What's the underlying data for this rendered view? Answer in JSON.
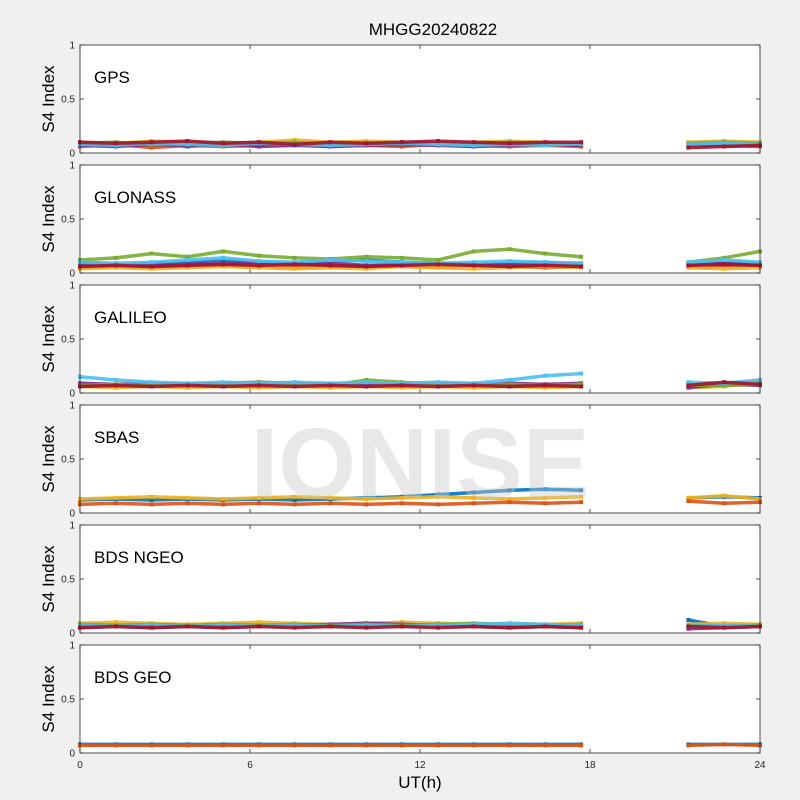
{
  "figure": {
    "title": "MHGG20240822",
    "watermark": "IONISE",
    "xlabel": "UT(h)",
    "background": "#f0f0f0",
    "panel_background": "#ffffff"
  },
  "chart_data": [
    {
      "type": "scatter",
      "label": "GPS",
      "ylabel": "S4 Index",
      "xlim": [
        0,
        24
      ],
      "ylim": [
        0,
        1
      ],
      "yticks": [
        "0",
        "0.5",
        "1"
      ],
      "xticks": [],
      "grid": false,
      "data_gap_hours": [
        18.2,
        20.9
      ],
      "series": [
        {
          "color": "#0072bd",
          "values": [
            0.08,
            0.07,
            0.09,
            0.06,
            0.08,
            0.1,
            0.07,
            0.09,
            0.08,
            0.07,
            0.08,
            0.09,
            0.07,
            0.08,
            0.09,
            0.08,
            0.07,
            0.08,
            0.08,
            0.09
          ]
        },
        {
          "color": "#d95319",
          "values": [
            0.06,
            0.08,
            0.05,
            0.07,
            0.06,
            0.07,
            0.08,
            0.06,
            0.07,
            0.06,
            0.08,
            0.07,
            0.06,
            0.07,
            0.06,
            0.07,
            0.06,
            0.07,
            0.07,
            0.06
          ]
        },
        {
          "color": "#edb120",
          "values": [
            0.1,
            0.09,
            0.11,
            0.1,
            0.09,
            0.1,
            0.12,
            0.1,
            0.11,
            0.1,
            0.09,
            0.1,
            0.11,
            0.1,
            0.09,
            0.1,
            0.09,
            0.1,
            0.11,
            0.1
          ]
        },
        {
          "color": "#7e2f8e",
          "values": [
            0.07,
            0.06,
            0.08,
            0.07,
            0.08,
            0.06,
            0.07,
            0.06,
            0.07,
            0.08,
            0.07,
            0.06,
            0.07,
            0.08,
            0.07,
            0.06,
            0.07,
            0.07,
            0.08,
            0.07
          ]
        },
        {
          "color": "#77ac30",
          "values": [
            0.09,
            0.1,
            0.08,
            0.09,
            0.1,
            0.09,
            0.1,
            0.08,
            0.09,
            0.1,
            0.09,
            0.08,
            0.1,
            0.09,
            0.08,
            0.09,
            0.1,
            0.09,
            0.1,
            0.09
          ]
        },
        {
          "color": "#4dbeee",
          "values": [
            0.08,
            0.07,
            0.09,
            0.08,
            0.07,
            0.09,
            0.08,
            0.07,
            0.08,
            0.09,
            0.08,
            0.07,
            0.08,
            0.07,
            0.09,
            0.08,
            0.07,
            0.08,
            0.09,
            0.08
          ]
        },
        {
          "color": "#a2142f",
          "values": [
            0.1,
            0.09,
            0.1,
            0.11,
            0.09,
            0.1,
            0.08,
            0.1,
            0.09,
            0.1,
            0.11,
            0.1,
            0.09,
            0.1,
            0.1,
            0.09,
            0.1,
            0.05,
            0.06,
            0.07
          ]
        }
      ]
    },
    {
      "type": "scatter",
      "label": "GLONASS",
      "ylabel": "S4 Index",
      "xlim": [
        0,
        24
      ],
      "ylim": [
        0,
        1
      ],
      "yticks": [
        "0",
        "0.5",
        "1"
      ],
      "xticks": [],
      "grid": false,
      "data_gap_hours": [
        18.2,
        20.9
      ],
      "series": [
        {
          "color": "#0072bd",
          "values": [
            0.08,
            0.07,
            0.09,
            0.1,
            0.12,
            0.1,
            0.09,
            0.11,
            0.12,
            0.1,
            0.09,
            0.08,
            0.09,
            0.1,
            0.08,
            0.09,
            0.07,
            0.08,
            0.1,
            0.09
          ]
        },
        {
          "color": "#d95319",
          "values": [
            0.05,
            0.06,
            0.05,
            0.06,
            0.07,
            0.06,
            0.05,
            0.06,
            0.07,
            0.06,
            0.05,
            0.07,
            0.06,
            0.05,
            0.06,
            0.07,
            0.06,
            0.05,
            0.06,
            0.07
          ]
        },
        {
          "color": "#edb120",
          "values": [
            0.04,
            0.05,
            0.04,
            0.05,
            0.06,
            0.05,
            0.04,
            0.05,
            0.04,
            0.06,
            0.05,
            0.04,
            0.05,
            0.06,
            0.05,
            0.04,
            0.05,
            0.05,
            0.04,
            0.05
          ]
        },
        {
          "color": "#7e2f8e",
          "values": [
            0.09,
            0.08,
            0.07,
            0.08,
            0.09,
            0.1,
            0.08,
            0.09,
            0.07,
            0.08,
            0.09,
            0.08,
            0.07,
            0.08,
            0.09,
            0.08,
            0.07,
            0.08,
            0.09,
            0.08
          ]
        },
        {
          "color": "#77ac30",
          "values": [
            0.12,
            0.14,
            0.18,
            0.15,
            0.2,
            0.16,
            0.14,
            0.13,
            0.15,
            0.14,
            0.12,
            0.2,
            0.22,
            0.18,
            0.15,
            0.13,
            0.12,
            0.1,
            0.14,
            0.2
          ]
        },
        {
          "color": "#4dbeee",
          "values": [
            0.1,
            0.09,
            0.1,
            0.12,
            0.14,
            0.11,
            0.1,
            0.12,
            0.11,
            0.1,
            0.09,
            0.1,
            0.11,
            0.1,
            0.09,
            0.1,
            0.09,
            0.1,
            0.12,
            0.1
          ]
        },
        {
          "color": "#a2142f",
          "values": [
            0.06,
            0.07,
            0.06,
            0.07,
            0.08,
            0.07,
            0.08,
            0.07,
            0.06,
            0.07,
            0.08,
            0.07,
            0.06,
            0.07,
            0.06,
            0.07,
            0.06,
            0.07,
            0.08,
            0.07
          ]
        }
      ]
    },
    {
      "type": "scatter",
      "label": "GALILEO",
      "ylabel": "S4 Index",
      "xlim": [
        0,
        24
      ],
      "ylim": [
        0,
        1
      ],
      "yticks": [
        "0",
        "0.5",
        "1"
      ],
      "xticks": [],
      "grid": false,
      "data_gap_hours": [
        18.2,
        20.9
      ],
      "series": [
        {
          "color": "#0072bd",
          "values": [
            0.07,
            0.06,
            0.07,
            0.08,
            0.07,
            0.06,
            0.07,
            0.08,
            0.07,
            0.06,
            0.07,
            0.08,
            0.07,
            0.06,
            0.07,
            0.08,
            0.07,
            0.06,
            0.08,
            0.1
          ]
        },
        {
          "color": "#d95319",
          "values": [
            0.08,
            0.07,
            0.08,
            0.07,
            0.09,
            0.08,
            0.07,
            0.08,
            0.07,
            0.08,
            0.07,
            0.08,
            0.07,
            0.08,
            0.07,
            0.08,
            0.07,
            0.08,
            0.07,
            0.08
          ]
        },
        {
          "color": "#edb120",
          "values": [
            0.06,
            0.05,
            0.06,
            0.05,
            0.06,
            0.05,
            0.06,
            0.05,
            0.06,
            0.05,
            0.06,
            0.05,
            0.06,
            0.05,
            0.06,
            0.05,
            0.06,
            0.05,
            0.06,
            0.12
          ]
        },
        {
          "color": "#7e2f8e",
          "values": [
            0.09,
            0.08,
            0.09,
            0.08,
            0.09,
            0.1,
            0.09,
            0.08,
            0.09,
            0.08,
            0.09,
            0.08,
            0.09,
            0.08,
            0.09,
            0.08,
            0.09,
            0.05,
            0.08,
            0.07
          ]
        },
        {
          "color": "#77ac30",
          "values": [
            0.07,
            0.08,
            0.07,
            0.08,
            0.07,
            0.1,
            0.08,
            0.07,
            0.12,
            0.1,
            0.08,
            0.07,
            0.08,
            0.07,
            0.08,
            0.07,
            0.08,
            0.07,
            0.07,
            0.08
          ]
        },
        {
          "color": "#4dbeee",
          "values": [
            0.15,
            0.12,
            0.1,
            0.09,
            0.1,
            0.09,
            0.1,
            0.09,
            0.1,
            0.09,
            0.1,
            0.09,
            0.12,
            0.16,
            0.18,
            0.15,
            0.12,
            0.1,
            0.09,
            0.12
          ]
        },
        {
          "color": "#a2142f",
          "values": [
            0.06,
            0.07,
            0.06,
            0.07,
            0.06,
            0.07,
            0.06,
            0.07,
            0.06,
            0.07,
            0.06,
            0.07,
            0.06,
            0.07,
            0.06,
            0.07,
            0.06,
            0.07,
            0.1,
            0.08
          ]
        }
      ]
    },
    {
      "type": "scatter",
      "label": "SBAS",
      "ylabel": "S4 Index",
      "xlim": [
        0,
        24
      ],
      "ylim": [
        0,
        1
      ],
      "yticks": [
        "0",
        "0.5",
        "1"
      ],
      "xticks": [],
      "grid": false,
      "data_gap_hours": [
        18.2,
        20.9
      ],
      "series": [
        {
          "color": "#0072bd",
          "values": [
            0.12,
            0.13,
            0.12,
            0.13,
            0.12,
            0.13,
            0.12,
            0.13,
            0.14,
            0.15,
            0.17,
            0.19,
            0.21,
            0.22,
            0.21,
            0.19,
            0.17,
            0.14,
            0.15,
            0.14
          ]
        },
        {
          "color": "#edb120",
          "values": [
            0.13,
            0.14,
            0.15,
            0.14,
            0.13,
            0.14,
            0.15,
            0.14,
            0.13,
            0.14,
            0.15,
            0.14,
            0.13,
            0.14,
            0.15,
            0.14,
            0.13,
            0.14,
            0.16,
            0.13
          ]
        },
        {
          "color": "#d95319",
          "values": [
            0.08,
            0.09,
            0.08,
            0.09,
            0.08,
            0.09,
            0.08,
            0.09,
            0.08,
            0.09,
            0.08,
            0.09,
            0.1,
            0.09,
            0.1,
            0.09,
            0.1,
            0.11,
            0.09,
            0.1
          ]
        }
      ]
    },
    {
      "type": "scatter",
      "label": "BDS NGEO",
      "ylabel": "S4 Index",
      "xlim": [
        0,
        24
      ],
      "ylim": [
        0,
        1
      ],
      "yticks": [
        "0",
        "0.5",
        "1"
      ],
      "xticks": [],
      "grid": false,
      "data_gap_hours": [
        18.2,
        20.9
      ],
      "series": [
        {
          "color": "#0072bd",
          "values": [
            0.06,
            0.07,
            0.06,
            0.07,
            0.06,
            0.07,
            0.06,
            0.07,
            0.06,
            0.07,
            0.08,
            0.07,
            0.06,
            0.07,
            0.06,
            0.07,
            0.06,
            0.12,
            0.06,
            0.07
          ]
        },
        {
          "color": "#d95319",
          "values": [
            0.07,
            0.08,
            0.07,
            0.06,
            0.07,
            0.08,
            0.07,
            0.06,
            0.07,
            0.08,
            0.07,
            0.06,
            0.07,
            0.08,
            0.07,
            0.06,
            0.07,
            0.06,
            0.07,
            0.08
          ]
        },
        {
          "color": "#edb120",
          "values": [
            0.09,
            0.1,
            0.09,
            0.08,
            0.09,
            0.1,
            0.09,
            0.08,
            0.09,
            0.1,
            0.09,
            0.08,
            0.09,
            0.08,
            0.09,
            0.08,
            0.09,
            0.08,
            0.09,
            0.08
          ]
        },
        {
          "color": "#7e2f8e",
          "values": [
            0.05,
            0.06,
            0.05,
            0.06,
            0.05,
            0.06,
            0.07,
            0.08,
            0.09,
            0.08,
            0.07,
            0.06,
            0.05,
            0.06,
            0.05,
            0.06,
            0.05,
            0.04,
            0.05,
            0.06
          ]
        },
        {
          "color": "#77ac30",
          "values": [
            0.08,
            0.07,
            0.08,
            0.07,
            0.08,
            0.07,
            0.08,
            0.07,
            0.08,
            0.07,
            0.08,
            0.09,
            0.08,
            0.07,
            0.08,
            0.07,
            0.08,
            0.07,
            0.06,
            0.07
          ]
        },
        {
          "color": "#4dbeee",
          "values": [
            0.07,
            0.06,
            0.07,
            0.06,
            0.07,
            0.06,
            0.07,
            0.06,
            0.07,
            0.06,
            0.07,
            0.08,
            0.09,
            0.08,
            0.07,
            0.06,
            0.07,
            0.06,
            0.07,
            0.06
          ]
        },
        {
          "color": "#a2142f",
          "values": [
            0.05,
            0.06,
            0.05,
            0.06,
            0.05,
            0.06,
            0.05,
            0.06,
            0.05,
            0.06,
            0.05,
            0.06,
            0.05,
            0.06,
            0.05,
            0.06,
            0.05,
            0.06,
            0.05,
            0.06
          ]
        }
      ]
    },
    {
      "type": "scatter",
      "label": "BDS GEO",
      "ylabel": "S4 Index",
      "xlim": [
        0,
        24
      ],
      "ylim": [
        0,
        1
      ],
      "yticks": [
        "0",
        "0.5",
        "1"
      ],
      "xticks": [
        "0",
        "6",
        "12",
        "18",
        "24"
      ],
      "grid": false,
      "data_gap_hours": [
        18.2,
        20.9
      ],
      "series": [
        {
          "color": "#0072bd",
          "values": [
            0.08,
            0.08,
            0.08,
            0.08,
            0.08,
            0.08,
            0.08,
            0.08,
            0.08,
            0.08,
            0.08,
            0.08,
            0.08,
            0.08,
            0.08,
            0.08,
            0.08,
            0.08,
            0.08,
            0.08
          ]
        },
        {
          "color": "#d95319",
          "values": [
            0.07,
            0.07,
            0.07,
            0.07,
            0.07,
            0.07,
            0.07,
            0.07,
            0.07,
            0.07,
            0.07,
            0.07,
            0.07,
            0.07,
            0.07,
            0.07,
            0.07,
            0.07,
            0.08,
            0.07
          ]
        }
      ]
    }
  ]
}
